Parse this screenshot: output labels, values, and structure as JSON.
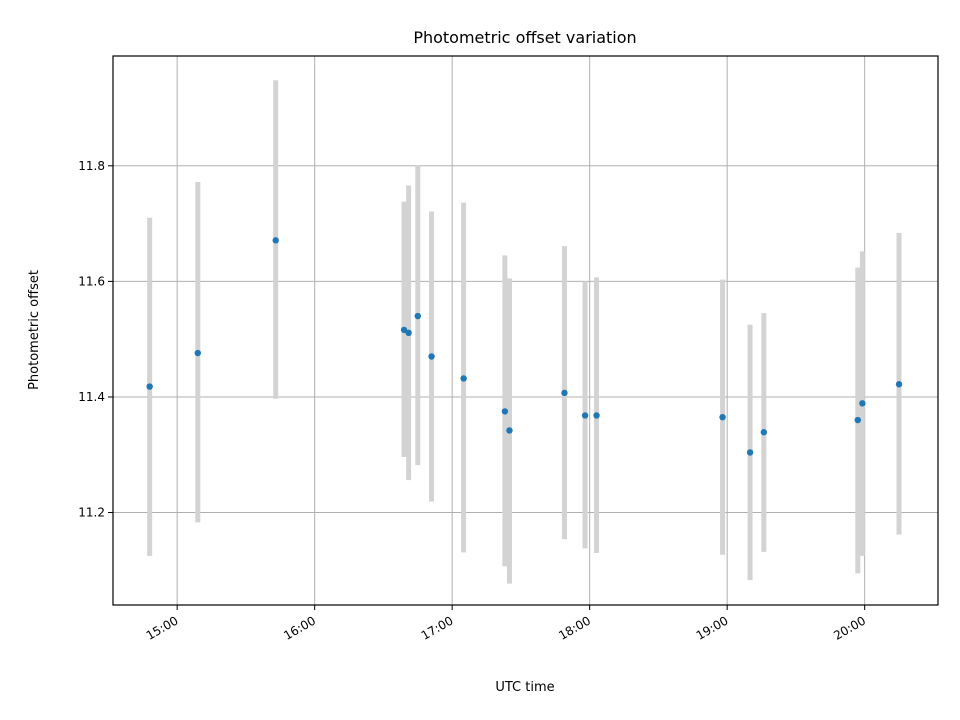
{
  "chart_data": {
    "type": "scatter",
    "title": "Photometric offset variation",
    "xlabel": "UTC time",
    "ylabel": "Photometric offset",
    "x_ticks": [
      "15:00",
      "16:00",
      "17:00",
      "18:00",
      "19:00",
      "20:00"
    ],
    "y_ticks": [
      "11.2",
      "11.4",
      "11.6",
      "11.8"
    ],
    "xlim": [
      "14:32",
      "20:32"
    ],
    "ylim": [
      11.04,
      11.99
    ],
    "grid": true,
    "colors": {
      "marker": "#1f77b4",
      "errorbar": "#d3d3d3",
      "grid": "#b0b0b0"
    },
    "series": [
      {
        "points": [
          {
            "x": "14:48",
            "y": 11.418,
            "yerr_low": 11.125,
            "yerr_high": 11.71
          },
          {
            "x": "15:09",
            "y": 11.476,
            "yerr_low": 11.183,
            "yerr_high": 11.772
          },
          {
            "x": "15:43",
            "y": 11.671,
            "yerr_low": 11.397,
            "yerr_high": 11.948
          },
          {
            "x": "16:39",
            "y": 11.516,
            "yerr_low": 11.296,
            "yerr_high": 11.738
          },
          {
            "x": "16:41",
            "y": 11.511,
            "yerr_low": 11.256,
            "yerr_high": 11.766
          },
          {
            "x": "16:45",
            "y": 11.54,
            "yerr_low": 11.282,
            "yerr_high": 11.801
          },
          {
            "x": "16:51",
            "y": 11.47,
            "yerr_low": 11.219,
            "yerr_high": 11.721
          },
          {
            "x": "17:05",
            "y": 11.432,
            "yerr_low": 11.131,
            "yerr_high": 11.736
          },
          {
            "x": "17:23",
            "y": 11.375,
            "yerr_low": 11.107,
            "yerr_high": 11.645
          },
          {
            "x": "17:25",
            "y": 11.342,
            "yerr_low": 11.077,
            "yerr_high": 11.605
          },
          {
            "x": "17:49",
            "y": 11.407,
            "yerr_low": 11.154,
            "yerr_high": 11.661
          },
          {
            "x": "17:58",
            "y": 11.368,
            "yerr_low": 11.138,
            "yerr_high": 11.6
          },
          {
            "x": "18:03",
            "y": 11.368,
            "yerr_low": 11.13,
            "yerr_high": 11.607
          },
          {
            "x": "18:58",
            "y": 11.365,
            "yerr_low": 11.127,
            "yerr_high": 11.603
          },
          {
            "x": "19:10",
            "y": 11.304,
            "yerr_low": 11.083,
            "yerr_high": 11.525
          },
          {
            "x": "19:16",
            "y": 11.339,
            "yerr_low": 11.132,
            "yerr_high": 11.545
          },
          {
            "x": "19:57",
            "y": 11.36,
            "yerr_low": 11.095,
            "yerr_high": 11.624
          },
          {
            "x": "19:59",
            "y": 11.389,
            "yerr_low": 11.125,
            "yerr_high": 11.652
          },
          {
            "x": "20:15",
            "y": 11.422,
            "yerr_low": 11.162,
            "yerr_high": 11.684
          }
        ]
      }
    ]
  }
}
